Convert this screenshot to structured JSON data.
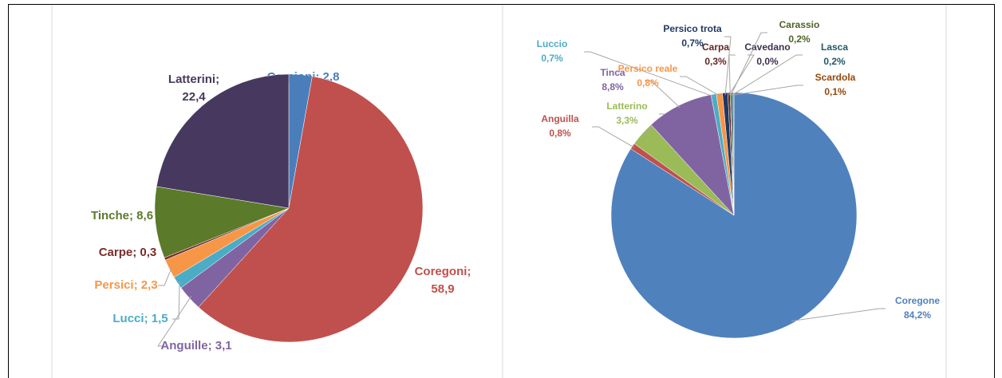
{
  "chart_data": [
    {
      "type": "pie",
      "labels": [
        "Carpioni; 2,8",
        "Coregoni;\n58,9",
        "Anguille; 3,1",
        "Lucci; 1,5",
        "Persici; 2,3",
        "Carpe; 0,3",
        "Tinche; 8,6",
        "Latterini;\n22,4"
      ],
      "values": [
        2.8,
        58.9,
        3.1,
        1.5,
        2.3,
        0.3,
        8.6,
        22.4
      ],
      "colors": [
        "#4a7ebb",
        "#c0504d",
        "#8064a2",
        "#4bacc6",
        "#f79646",
        "#7b2c2a",
        "#5b7a2a",
        "#47385f"
      ]
    },
    {
      "type": "pie",
      "labels": [
        "Coregone\n84,2%",
        "Anguilla\n0,8%",
        "Latterino\n3,3%",
        "Tinca\n8,8%",
        "Luccio\n0,7%",
        "Persico reale\n0,8%",
        "Persico trota\n0,7%",
        "Carpa\n0,3%",
        "Cavedano\n0,0%",
        "Carassio\n0,2%",
        "Lasca\n0,2%",
        "Scardola\n0,1%"
      ],
      "values": [
        84.2,
        0.8,
        3.3,
        8.8,
        0.7,
        0.8,
        0.7,
        0.3,
        0.0,
        0.2,
        0.2,
        0.1
      ],
      "colors": [
        "#4f81bd",
        "#c0504d",
        "#9bbb59",
        "#8064a2",
        "#4bacc6",
        "#f79646",
        "#1f3864",
        "#632523",
        "#3f3151",
        "#4f6228",
        "#215968",
        "#984807"
      ]
    }
  ]
}
